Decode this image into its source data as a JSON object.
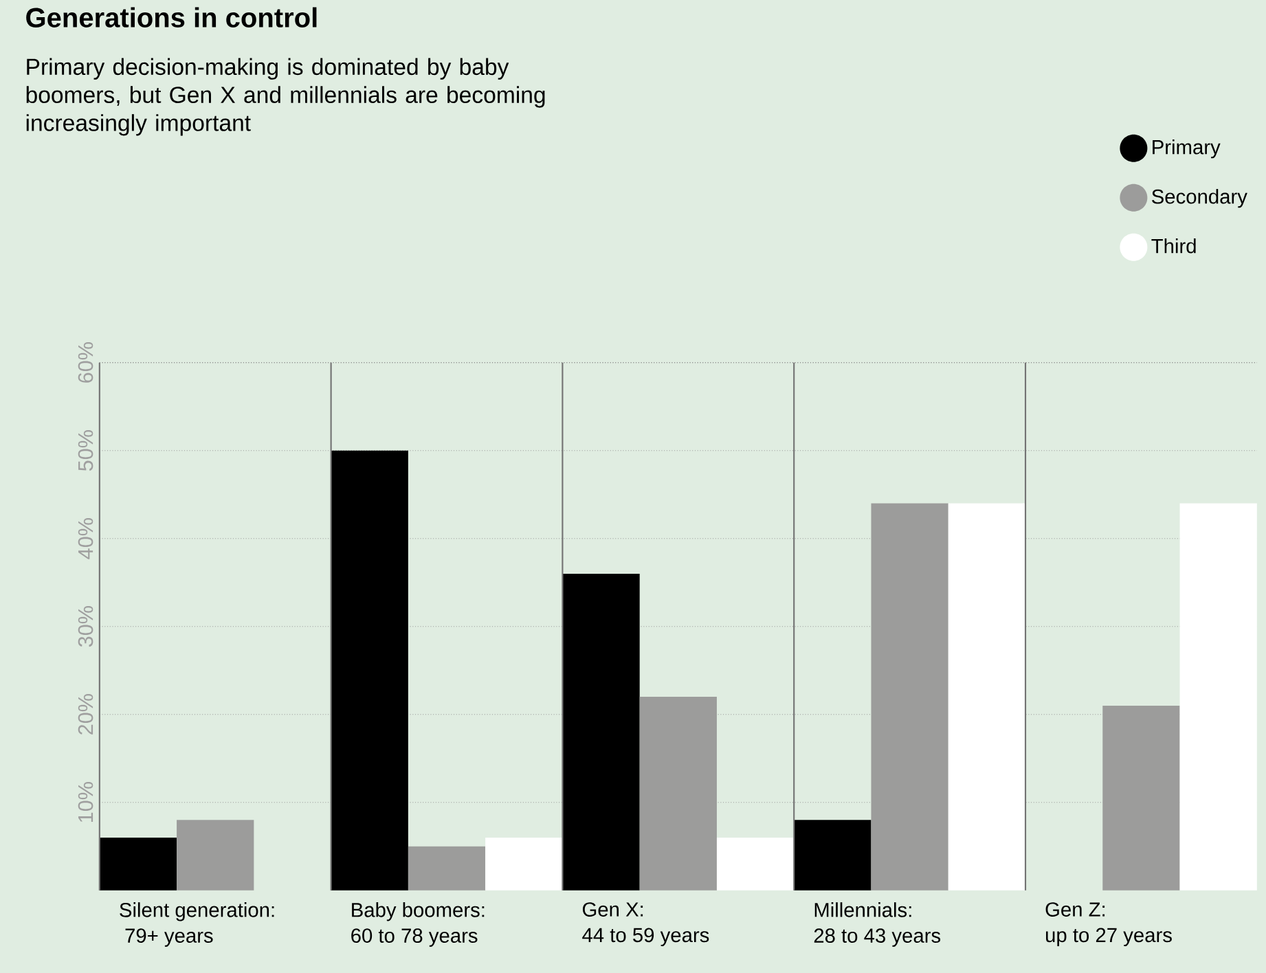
{
  "chart_data": {
    "type": "bar",
    "title": "Generations in control",
    "subtitle": "Primary decision-making is dominated by baby boomers, but Gen X and millennials are becoming increasingly important",
    "categories": [
      "Silent generation:\n 79+ years",
      "Baby boomers:\n60 to 78 years",
      "Gen X:\n44 to 59 years",
      "Millennials:\n28 to 43 years",
      "Gen Z:\nup to 27 years"
    ],
    "series": [
      {
        "name": "Primary",
        "color": "#000000",
        "values": [
          6,
          50,
          36,
          8,
          null
        ]
      },
      {
        "name": "Secondary",
        "color": "#9c9c9b",
        "values": [
          8,
          5,
          22,
          44,
          21
        ]
      },
      {
        "name": "Third",
        "color": "#ffffff",
        "values": [
          null,
          6,
          6,
          44,
          44
        ]
      }
    ],
    "ylim": [
      0,
      60
    ],
    "yticks": [
      {
        "value": 10,
        "label": "10%"
      },
      {
        "value": 20,
        "label": "20%"
      },
      {
        "value": 30,
        "label": "30%"
      },
      {
        "value": 40,
        "label": "40%"
      },
      {
        "value": 50,
        "label": "50%"
      },
      {
        "value": 60,
        "label": "60%"
      }
    ],
    "grid": "y",
    "legend": "top right"
  }
}
